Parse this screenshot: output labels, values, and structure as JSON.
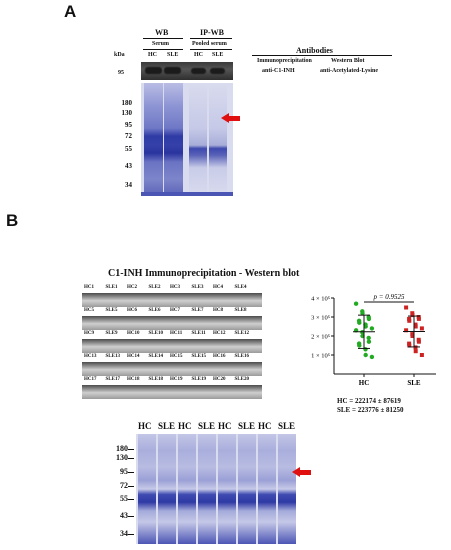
{
  "panel_a": {
    "label": "A",
    "wb_title": "WB",
    "ipwb_title": "IP-WB",
    "serum_label": "Serum",
    "pooled_label": "Pooled serum",
    "lane_labels": [
      "HC",
      "SLE",
      "HC",
      "SLE"
    ],
    "kda_label": "kDa",
    "top_marker": "95",
    "markers": [
      "180",
      "130",
      "95",
      "72",
      "55",
      "43",
      "34"
    ],
    "antibodies_title": "Antibodies",
    "ip_col_title": "Immunoprecipitation",
    "wb_col_title": "Western Blot",
    "ip_antibody": "anti-C1-INH",
    "wb_antibody": "anti-Acetylated-Lysine"
  },
  "panel_b": {
    "label": "B",
    "title": "C1-INH  Immunoprecipitation - Western blot",
    "strip_rows": [
      [
        "HC1",
        "SLE1",
        "HC2",
        "SLE2",
        "HC3",
        "SLE3",
        "HC4",
        "SLE4"
      ],
      [
        "HC5",
        "SLE5",
        "HC6",
        "SLE6",
        "HC7",
        "SLE7",
        "HC8",
        "SLE8"
      ],
      [
        "HC9",
        "SLE9",
        "HC10",
        "SLE10",
        "HC11",
        "SLE11",
        "HC12",
        "SLE12"
      ],
      [
        "HC13",
        "SLE13",
        "HC14",
        "SLE14",
        "HC15",
        "SLE15",
        "HC16",
        "SLE16"
      ],
      [
        "HC17",
        "SLE17",
        "HC18",
        "SLE18",
        "HC19",
        "SLE19",
        "HC20",
        "SLE20"
      ]
    ],
    "gel_lane_labels": [
      "HC",
      "SLE",
      "HC",
      "SLE",
      "HC",
      "SLE",
      "HC",
      "SLE"
    ],
    "gel_markers": [
      "180",
      "130",
      "95",
      "72",
      "55",
      "43",
      "34"
    ],
    "p_value_text": "p = 0.9525",
    "hc_stat": "HC = 222174 ± 87619",
    "sle_stat": "SLE = 223776 ± 81250"
  },
  "chart_data": {
    "type": "scatter",
    "categories": [
      "HC",
      "SLE"
    ],
    "y_ticks": [
      "4 × 10⁵",
      "3 × 10⁵",
      "2 × 10⁵",
      "1 × 10⁵"
    ],
    "ylim": [
      0,
      400000
    ],
    "colors": {
      "HC": "#22aa22",
      "SLE": "#cc2222"
    },
    "series": [
      {
        "name": "HC",
        "mean": 222174,
        "sd": 87619,
        "values": [
          370000,
          330000,
          320000,
          300000,
          290000,
          280000,
          270000,
          260000,
          250000,
          240000,
          230000,
          220000,
          200000,
          190000,
          170000,
          160000,
          150000,
          130000,
          100000,
          90000
        ]
      },
      {
        "name": "SLE",
        "mean": 223776,
        "sd": 81250,
        "values": [
          350000,
          320000,
          310000,
          300000,
          290000,
          290000,
          280000,
          260000,
          250000,
          240000,
          230000,
          210000,
          200000,
          180000,
          170000,
          160000,
          150000,
          140000,
          120000,
          100000
        ]
      }
    ]
  },
  "colors": {
    "arrow": "#e01010",
    "gel_bg": "#d9dbee",
    "gel_band": "#3f4bb0"
  }
}
